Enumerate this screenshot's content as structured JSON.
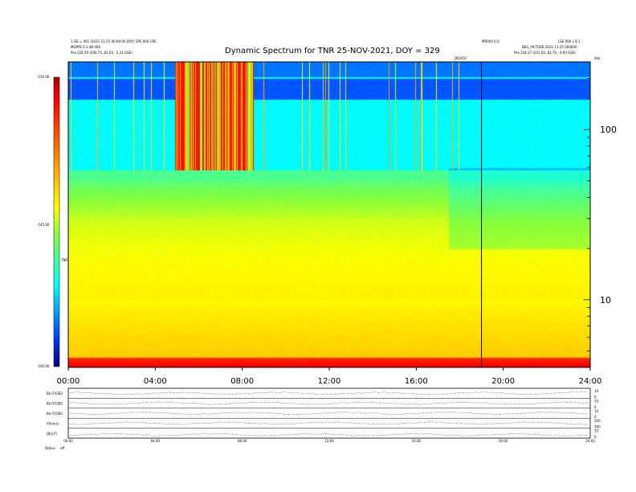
{
  "header": {
    "title": "Dynamic Spectrum for TNR 25-NOV-2021, DOY = 329",
    "left_line1": "1-SD = 401 (2021-11-25 00:00:00 DOY) SPE 000 GPE",
    "left_line2": "MGPPE 0.3 dB 000",
    "left_line3": "Pos    218.59 (200.75, 81.03, -5.21 GSE)",
    "right_line1": "MR000 0.0",
    "right_line2": "LSE  000 v 8.1",
    "right_line3": "BEG_PICTURE  2021-11-25 000000",
    "right_line4": "Pos    218.37 (201.50, 83.70, -4.60 GSE)",
    "marker_label": "DEVICE",
    "freq_unit": "kHz"
  },
  "colorbar": {
    "ticks": [
      "-130.00",
      "-145.00",
      "-160.00"
    ],
    "label": "TNR",
    "colors": [
      "#b00000",
      "#ff0000",
      "#ff8000",
      "#ffff00",
      "#80ff40",
      "#00ffff",
      "#0040ff",
      "#000080"
    ]
  },
  "chart_data": {
    "type": "heatmap",
    "title": "Dynamic Spectrum for TNR 25-NOV-2021, DOY = 329",
    "x_ticks": [
      "00:00",
      "04:00",
      "08:00",
      "12:00",
      "16:00",
      "20:00",
      "24:00"
    ],
    "xlim_hours": [
      0,
      24
    ],
    "y_axis": "log",
    "y_ticks": [
      "100",
      "10"
    ],
    "y_range": [
      4,
      250
    ],
    "z_range": [
      -160,
      -130
    ],
    "vertical_marker_hour": 19.0,
    "features": [
      {
        "name": "burst",
        "start_hour": 4.9,
        "end_hour": 8.5,
        "freq_min": 58,
        "freq_max": 250
      },
      {
        "name": "low_freq_red_band",
        "freq_max": 4.6
      }
    ]
  },
  "bottom_panel": {
    "rows": [
      {
        "label": "B(nT/GSE)",
        "right_ticks": [
          "10",
          "0"
        ]
      },
      {
        "label": "B(nT/GSE)",
        "right_ticks": [
          "10",
          "0"
        ]
      },
      {
        "label": "B(nT/GSE)",
        "right_ticks": [
          "10",
          "0"
        ]
      },
      {
        "label": "V(km/s)",
        "right_ticks": [
          "500",
          "300"
        ]
      },
      {
        "label": "|B|(nT)",
        "right_ticks": [
          "10",
          "0"
        ]
      }
    ],
    "x_ticks": [
      "00:00",
      "04:00",
      "08:00",
      "12:00",
      "16:00",
      "20:00",
      "24:00"
    ],
    "status_label": "Status",
    "status_value": "off"
  }
}
